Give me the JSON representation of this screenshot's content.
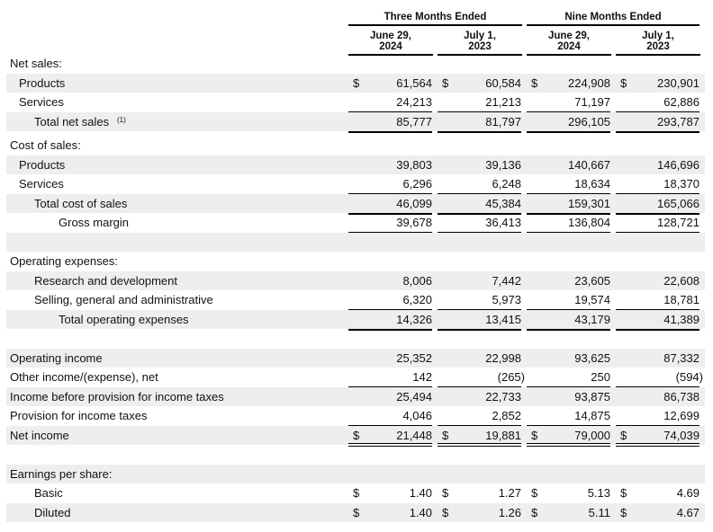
{
  "header": {
    "groups": [
      "Three Months Ended",
      "Nine Months Ended"
    ],
    "columns": [
      {
        "line1": "June 29,",
        "line2": "2024"
      },
      {
        "line1": "July 1,",
        "line2": "2023"
      },
      {
        "line1": "June 29,",
        "line2": "2024"
      },
      {
        "line1": "July 1,",
        "line2": "2023"
      }
    ]
  },
  "currency_symbol": "$",
  "rows": [
    {
      "label": "Net sales:",
      "indent": 0,
      "values": []
    },
    {
      "label": "Products",
      "indent": 1,
      "values": [
        "61,564",
        "60,584",
        "224,908",
        "230,901"
      ],
      "dollar": true
    },
    {
      "label": "Services",
      "indent": 1,
      "values": [
        "24,213",
        "21,213",
        "71,197",
        "62,886"
      ],
      "rule": "single"
    },
    {
      "label": "Total net sales",
      "footnote": "(1)",
      "indent": 2,
      "values": [
        "85,777",
        "81,797",
        "296,105",
        "293,787"
      ],
      "rule": "single"
    },
    {
      "label": "Cost of sales:",
      "indent": 0,
      "values": []
    },
    {
      "label": "Products",
      "indent": 1,
      "values": [
        "39,803",
        "39,136",
        "140,667",
        "146,696"
      ]
    },
    {
      "label": "Services",
      "indent": 1,
      "values": [
        "6,296",
        "6,248",
        "18,634",
        "18,370"
      ],
      "rule": "single"
    },
    {
      "label": "Total cost of sales",
      "indent": 2,
      "values": [
        "46,099",
        "45,384",
        "159,301",
        "165,066"
      ],
      "rule": "single"
    },
    {
      "label": "Gross margin",
      "indent": 3,
      "values": [
        "39,678",
        "36,413",
        "136,804",
        "128,721"
      ],
      "rule": "single"
    },
    {
      "label": "",
      "indent": 0,
      "values": []
    },
    {
      "label": "Operating expenses:",
      "indent": 0,
      "values": []
    },
    {
      "label": "Research and development",
      "indent": 2,
      "values": [
        "8,006",
        "7,442",
        "23,605",
        "22,608"
      ]
    },
    {
      "label": "Selling, general and administrative",
      "indent": 2,
      "values": [
        "6,320",
        "5,973",
        "19,574",
        "18,781"
      ],
      "rule": "single"
    },
    {
      "label": "Total operating expenses",
      "indent": 3,
      "values": [
        "14,326",
        "13,415",
        "43,179",
        "41,389"
      ],
      "rule": "single"
    },
    {
      "label": "",
      "indent": 0,
      "values": []
    },
    {
      "label": "Operating income",
      "indent": 0,
      "values": [
        "25,352",
        "22,998",
        "93,625",
        "87,332"
      ]
    },
    {
      "label": "Other income/(expense), net",
      "indent": 0,
      "values": [
        "142",
        "(265)",
        "250",
        "(594)"
      ],
      "rule": "single"
    },
    {
      "label": "Income before provision for income taxes",
      "indent": 0,
      "values": [
        "25,494",
        "22,733",
        "93,875",
        "86,738"
      ]
    },
    {
      "label": "Provision for income taxes",
      "indent": 0,
      "values": [
        "4,046",
        "2,852",
        "14,875",
        "12,699"
      ],
      "rule": "single"
    },
    {
      "label": "Net income",
      "indent": 0,
      "values": [
        "21,448",
        "19,881",
        "79,000",
        "74,039"
      ],
      "dollar": true,
      "rule": "double"
    },
    {
      "label": "",
      "indent": 0,
      "values": []
    },
    {
      "label": "Earnings per share:",
      "indent": 0,
      "values": []
    },
    {
      "label": "Basic",
      "indent": 2,
      "values": [
        "1.40",
        "1.27",
        "5.13",
        "4.69"
      ],
      "dollar": true
    },
    {
      "label": "Diluted",
      "indent": 2,
      "values": [
        "1.40",
        "1.26",
        "5.11",
        "4.67"
      ],
      "dollar": true
    }
  ]
}
